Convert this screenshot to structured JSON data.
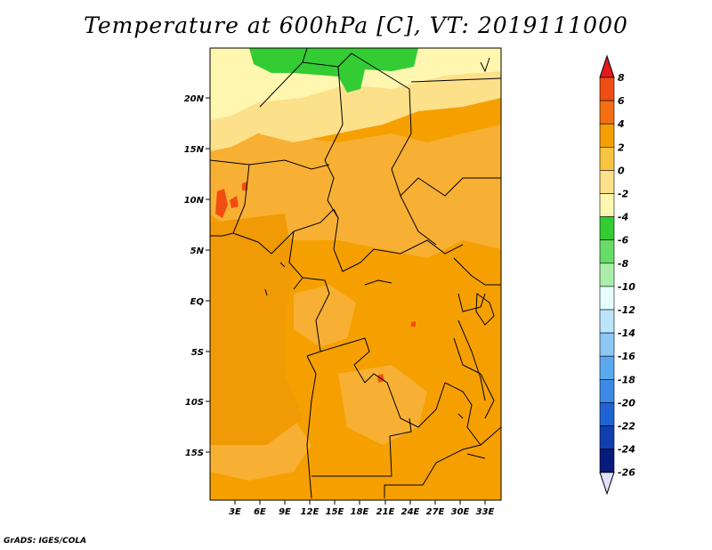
{
  "title": "Temperature at 600hPa [C], VT: 2019111000",
  "footer": "GrADS: IGES/COLA",
  "map": {
    "lat_labels": [
      "20N",
      "15N",
      "10N",
      "5N",
      "EQ",
      "5S",
      "10S",
      "15S"
    ],
    "lon_labels": [
      "3E",
      "6E",
      "9E",
      "12E",
      "15E",
      "18E",
      "21E",
      "24E",
      "27E",
      "30E",
      "33E"
    ]
  },
  "colorbar": {
    "levels": [
      "8",
      "6",
      "4",
      "2",
      "0",
      "-2",
      "-4",
      "-6",
      "-8",
      "-10",
      "-12",
      "-14",
      "-16",
      "-18",
      "-20",
      "-22",
      "-24",
      "-26"
    ],
    "colors": [
      "#e41a1c",
      "#f04d12",
      "#f36f12",
      "#f5a000",
      "#f8c440",
      "#fde08a",
      "#fff7b0",
      "#33cc33",
      "#66dd66",
      "#aaeeaa",
      "#e6ffff",
      "#bce4fa",
      "#8cc8f5",
      "#5ca8ef",
      "#3c8ae6",
      "#1e64d4",
      "#1040b0",
      "#081a7a",
      "#000050",
      "#e0e0ff"
    ]
  }
}
